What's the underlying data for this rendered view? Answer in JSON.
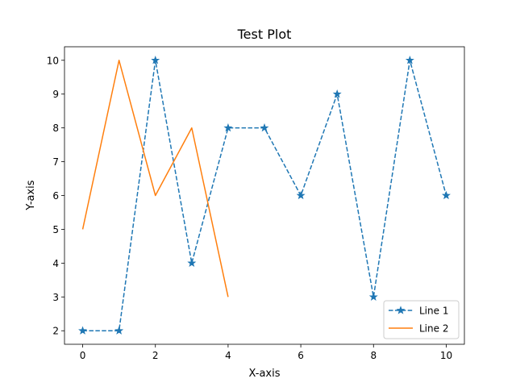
{
  "chart_data": {
    "type": "line",
    "title": "Test Plot",
    "xlabel": "X-axis",
    "ylabel": "Y-axis",
    "xlim": [
      -0.5,
      10.5
    ],
    "ylim": [
      1.6,
      10.4
    ],
    "xticks": [
      0,
      2,
      4,
      6,
      8,
      10
    ],
    "yticks": [
      2,
      3,
      4,
      5,
      6,
      7,
      8,
      9,
      10
    ],
    "grid": false,
    "legend_position": "lower-right",
    "series": [
      {
        "name": "Line 1",
        "x": [
          0,
          1,
          2,
          3,
          4,
          5,
          6,
          7,
          8,
          9,
          10
        ],
        "values": [
          2,
          2,
          10,
          4,
          8,
          8,
          6,
          9,
          3,
          10,
          6
        ],
        "color": "#1f77b4",
        "linestyle": "dashed",
        "marker": "star"
      },
      {
        "name": "Line 2",
        "x": [
          0,
          1,
          2,
          3,
          4
        ],
        "values": [
          5,
          10,
          6,
          8,
          3
        ],
        "color": "#ff7f0e",
        "linestyle": "solid",
        "marker": "none"
      }
    ]
  }
}
